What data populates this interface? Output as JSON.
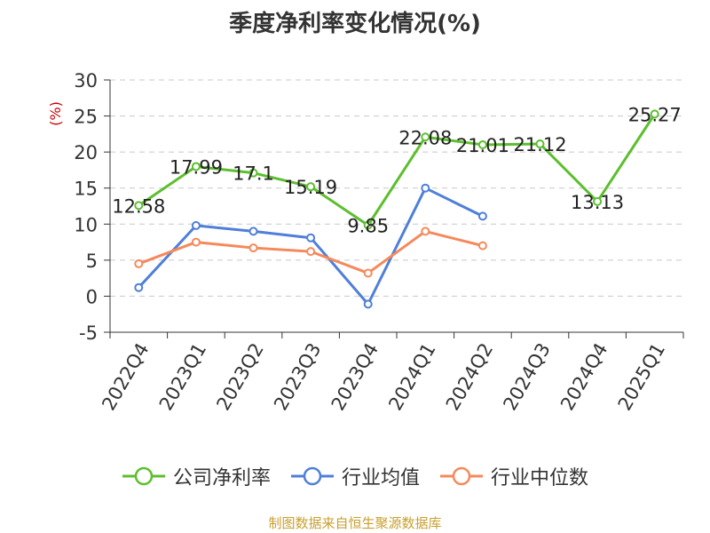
{
  "chart_data": {
    "type": "line",
    "title": "季度净利率变化情况(%)",
    "ylabel": "(%)",
    "categories": [
      "2022Q4",
      "2023Q1",
      "2023Q2",
      "2023Q3",
      "2023Q4",
      "2024Q1",
      "2024Q2",
      "2024Q3",
      "2024Q4",
      "2025Q1"
    ],
    "ylim": [
      -5,
      30
    ],
    "yticks": [
      -5,
      0,
      5,
      10,
      15,
      20,
      25,
      30
    ],
    "grid": true,
    "legend": "bottom",
    "series": [
      {
        "name": "公司净利率",
        "color": "#5cbf2e",
        "labels": true,
        "values": [
          12.58,
          17.99,
          17.1,
          15.19,
          9.85,
          22.08,
          21.01,
          21.12,
          13.13,
          25.27
        ]
      },
      {
        "name": "行业均值",
        "color": "#4f7fd8",
        "labels": false,
        "values": [
          1.2,
          9.8,
          9.0,
          8.1,
          -1.1,
          15.0,
          11.1,
          null,
          null,
          null
        ]
      },
      {
        "name": "行业中位数",
        "color": "#f5895b",
        "labels": false,
        "values": [
          4.5,
          7.5,
          6.7,
          6.2,
          3.2,
          9.0,
          7.0,
          null,
          null,
          null
        ]
      }
    ]
  },
  "source": "制图数据来自恒生聚源数据库"
}
